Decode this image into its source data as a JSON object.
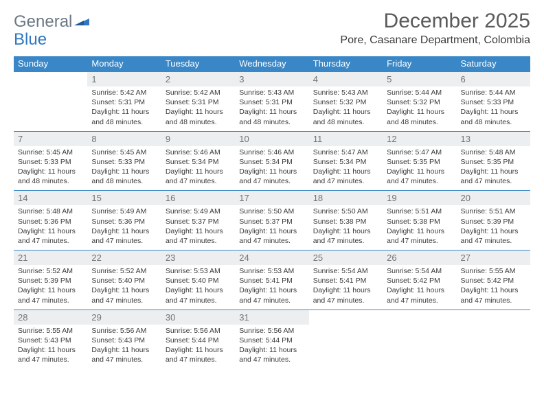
{
  "brand": {
    "part1": "General",
    "part2": "Blue"
  },
  "title": "December 2025",
  "location": "Pore, Casanare Department, Colombia",
  "colors": {
    "header_bg": "#3a87c7",
    "header_text": "#ffffff",
    "daynum_bg": "#eceeef",
    "daynum_text": "#707478",
    "body_text": "#3a3a3a",
    "rule": "#3a87c7"
  },
  "weekdays": [
    "Sunday",
    "Monday",
    "Tuesday",
    "Wednesday",
    "Thursday",
    "Friday",
    "Saturday"
  ],
  "weeks": [
    {
      "nums": [
        "",
        "1",
        "2",
        "3",
        "4",
        "5",
        "6"
      ],
      "cells": [
        null,
        {
          "sr": "5:42 AM",
          "ss": "5:31 PM",
          "dl": "11 hours and 48 minutes."
        },
        {
          "sr": "5:42 AM",
          "ss": "5:31 PM",
          "dl": "11 hours and 48 minutes."
        },
        {
          "sr": "5:43 AM",
          "ss": "5:31 PM",
          "dl": "11 hours and 48 minutes."
        },
        {
          "sr": "5:43 AM",
          "ss": "5:32 PM",
          "dl": "11 hours and 48 minutes."
        },
        {
          "sr": "5:44 AM",
          "ss": "5:32 PM",
          "dl": "11 hours and 48 minutes."
        },
        {
          "sr": "5:44 AM",
          "ss": "5:33 PM",
          "dl": "11 hours and 48 minutes."
        }
      ]
    },
    {
      "nums": [
        "7",
        "8",
        "9",
        "10",
        "11",
        "12",
        "13"
      ],
      "cells": [
        {
          "sr": "5:45 AM",
          "ss": "5:33 PM",
          "dl": "11 hours and 48 minutes."
        },
        {
          "sr": "5:45 AM",
          "ss": "5:33 PM",
          "dl": "11 hours and 48 minutes."
        },
        {
          "sr": "5:46 AM",
          "ss": "5:34 PM",
          "dl": "11 hours and 47 minutes."
        },
        {
          "sr": "5:46 AM",
          "ss": "5:34 PM",
          "dl": "11 hours and 47 minutes."
        },
        {
          "sr": "5:47 AM",
          "ss": "5:34 PM",
          "dl": "11 hours and 47 minutes."
        },
        {
          "sr": "5:47 AM",
          "ss": "5:35 PM",
          "dl": "11 hours and 47 minutes."
        },
        {
          "sr": "5:48 AM",
          "ss": "5:35 PM",
          "dl": "11 hours and 47 minutes."
        }
      ]
    },
    {
      "nums": [
        "14",
        "15",
        "16",
        "17",
        "18",
        "19",
        "20"
      ],
      "cells": [
        {
          "sr": "5:48 AM",
          "ss": "5:36 PM",
          "dl": "11 hours and 47 minutes."
        },
        {
          "sr": "5:49 AM",
          "ss": "5:36 PM",
          "dl": "11 hours and 47 minutes."
        },
        {
          "sr": "5:49 AM",
          "ss": "5:37 PM",
          "dl": "11 hours and 47 minutes."
        },
        {
          "sr": "5:50 AM",
          "ss": "5:37 PM",
          "dl": "11 hours and 47 minutes."
        },
        {
          "sr": "5:50 AM",
          "ss": "5:38 PM",
          "dl": "11 hours and 47 minutes."
        },
        {
          "sr": "5:51 AM",
          "ss": "5:38 PM",
          "dl": "11 hours and 47 minutes."
        },
        {
          "sr": "5:51 AM",
          "ss": "5:39 PM",
          "dl": "11 hours and 47 minutes."
        }
      ]
    },
    {
      "nums": [
        "21",
        "22",
        "23",
        "24",
        "25",
        "26",
        "27"
      ],
      "cells": [
        {
          "sr": "5:52 AM",
          "ss": "5:39 PM",
          "dl": "11 hours and 47 minutes."
        },
        {
          "sr": "5:52 AM",
          "ss": "5:40 PM",
          "dl": "11 hours and 47 minutes."
        },
        {
          "sr": "5:53 AM",
          "ss": "5:40 PM",
          "dl": "11 hours and 47 minutes."
        },
        {
          "sr": "5:53 AM",
          "ss": "5:41 PM",
          "dl": "11 hours and 47 minutes."
        },
        {
          "sr": "5:54 AM",
          "ss": "5:41 PM",
          "dl": "11 hours and 47 minutes."
        },
        {
          "sr": "5:54 AM",
          "ss": "5:42 PM",
          "dl": "11 hours and 47 minutes."
        },
        {
          "sr": "5:55 AM",
          "ss": "5:42 PM",
          "dl": "11 hours and 47 minutes."
        }
      ]
    },
    {
      "nums": [
        "28",
        "29",
        "30",
        "31",
        "",
        "",
        ""
      ],
      "cells": [
        {
          "sr": "5:55 AM",
          "ss": "5:43 PM",
          "dl": "11 hours and 47 minutes."
        },
        {
          "sr": "5:56 AM",
          "ss": "5:43 PM",
          "dl": "11 hours and 47 minutes."
        },
        {
          "sr": "5:56 AM",
          "ss": "5:44 PM",
          "dl": "11 hours and 47 minutes."
        },
        {
          "sr": "5:56 AM",
          "ss": "5:44 PM",
          "dl": "11 hours and 47 minutes."
        },
        null,
        null,
        null
      ]
    }
  ],
  "labels": {
    "sunrise": "Sunrise:",
    "sunset": "Sunset:",
    "daylight": "Daylight:"
  }
}
